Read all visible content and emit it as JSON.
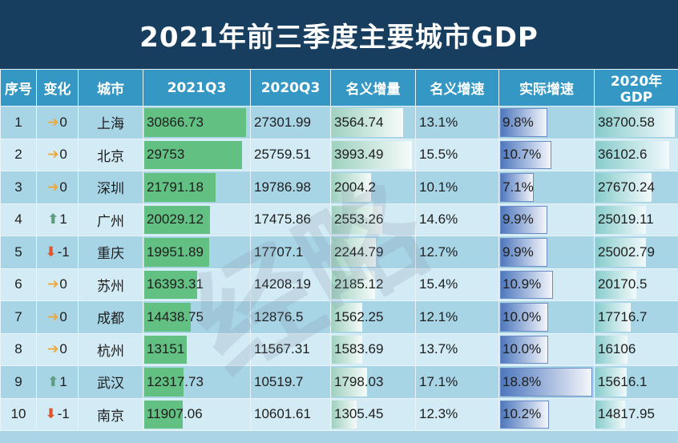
{
  "title": "2021年前三季度主要城市GDP",
  "watermark": "经略",
  "columns": [
    "序号",
    "变化",
    "城市",
    "2021Q3",
    "2020Q3",
    "名义增量",
    "名义增速",
    "实际增速",
    "2020年GDP"
  ],
  "colors": {
    "title_bg": "#173e5f",
    "header_bg": "#3597c3",
    "bar_green": "#62c083",
    "bar_blue": "#4e78be",
    "arrow_flat": "#f0a73a",
    "arrow_up": "#5f9d83",
    "arrow_down": "#e0552b"
  },
  "rows": [
    {
      "rank": "1",
      "trend": "flat",
      "change": "0",
      "city": "上海",
      "q3_2021": "30866.73",
      "q3_2020": "27301.99",
      "nominal_increase": "3564.74",
      "nominal_growth": "13.1%",
      "real_growth": "9.8%",
      "gdp_2020": "38700.58"
    },
    {
      "rank": "2",
      "trend": "flat",
      "change": "0",
      "city": "北京",
      "q3_2021": "29753",
      "q3_2020": "25759.51",
      "nominal_increase": "3993.49",
      "nominal_growth": "15.5%",
      "real_growth": "10.7%",
      "gdp_2020": "36102.6"
    },
    {
      "rank": "3",
      "trend": "flat",
      "change": "0",
      "city": "深圳",
      "q3_2021": "21791.18",
      "q3_2020": "19786.98",
      "nominal_increase": "2004.2",
      "nominal_growth": "10.1%",
      "real_growth": "7.1%",
      "gdp_2020": "27670.24"
    },
    {
      "rank": "4",
      "trend": "up",
      "change": "1",
      "city": "广州",
      "q3_2021": "20029.12",
      "q3_2020": "17475.86",
      "nominal_increase": "2553.26",
      "nominal_growth": "14.6%",
      "real_growth": "9.9%",
      "gdp_2020": "25019.11"
    },
    {
      "rank": "5",
      "trend": "down",
      "change": "-1",
      "city": "重庆",
      "q3_2021": "19951.89",
      "q3_2020": "17707.1",
      "nominal_increase": "2244.79",
      "nominal_growth": "12.7%",
      "real_growth": "9.9%",
      "gdp_2020": "25002.79"
    },
    {
      "rank": "6",
      "trend": "flat",
      "change": "0",
      "city": "苏州",
      "q3_2021": "16393.31",
      "q3_2020": "14208.19",
      "nominal_increase": "2185.12",
      "nominal_growth": "15.4%",
      "real_growth": "10.9%",
      "gdp_2020": "20170.5"
    },
    {
      "rank": "7",
      "trend": "flat",
      "change": "0",
      "city": "成都",
      "q3_2021": "14438.75",
      "q3_2020": "12876.5",
      "nominal_increase": "1562.25",
      "nominal_growth": "12.1%",
      "real_growth": "10.0%",
      "gdp_2020": "17716.7"
    },
    {
      "rank": "8",
      "trend": "flat",
      "change": "0",
      "city": "杭州",
      "q3_2021": "13151",
      "q3_2020": "11567.31",
      "nominal_increase": "1583.69",
      "nominal_growth": "13.7%",
      "real_growth": "10.0%",
      "gdp_2020": "16106"
    },
    {
      "rank": "9",
      "trend": "up",
      "change": "1",
      "city": "武汉",
      "q3_2021": "12317.73",
      "q3_2020": "10519.7",
      "nominal_increase": "1798.03",
      "nominal_growth": "17.1%",
      "real_growth": "18.8%",
      "gdp_2020": "15616.1"
    },
    {
      "rank": "10",
      "trend": "down",
      "change": "-1",
      "city": "南京",
      "q3_2021": "11907.06",
      "q3_2020": "10601.61",
      "nominal_increase": "1305.45",
      "nominal_growth": "12.3%",
      "real_growth": "10.2%",
      "gdp_2020": "14817.95"
    }
  ]
}
